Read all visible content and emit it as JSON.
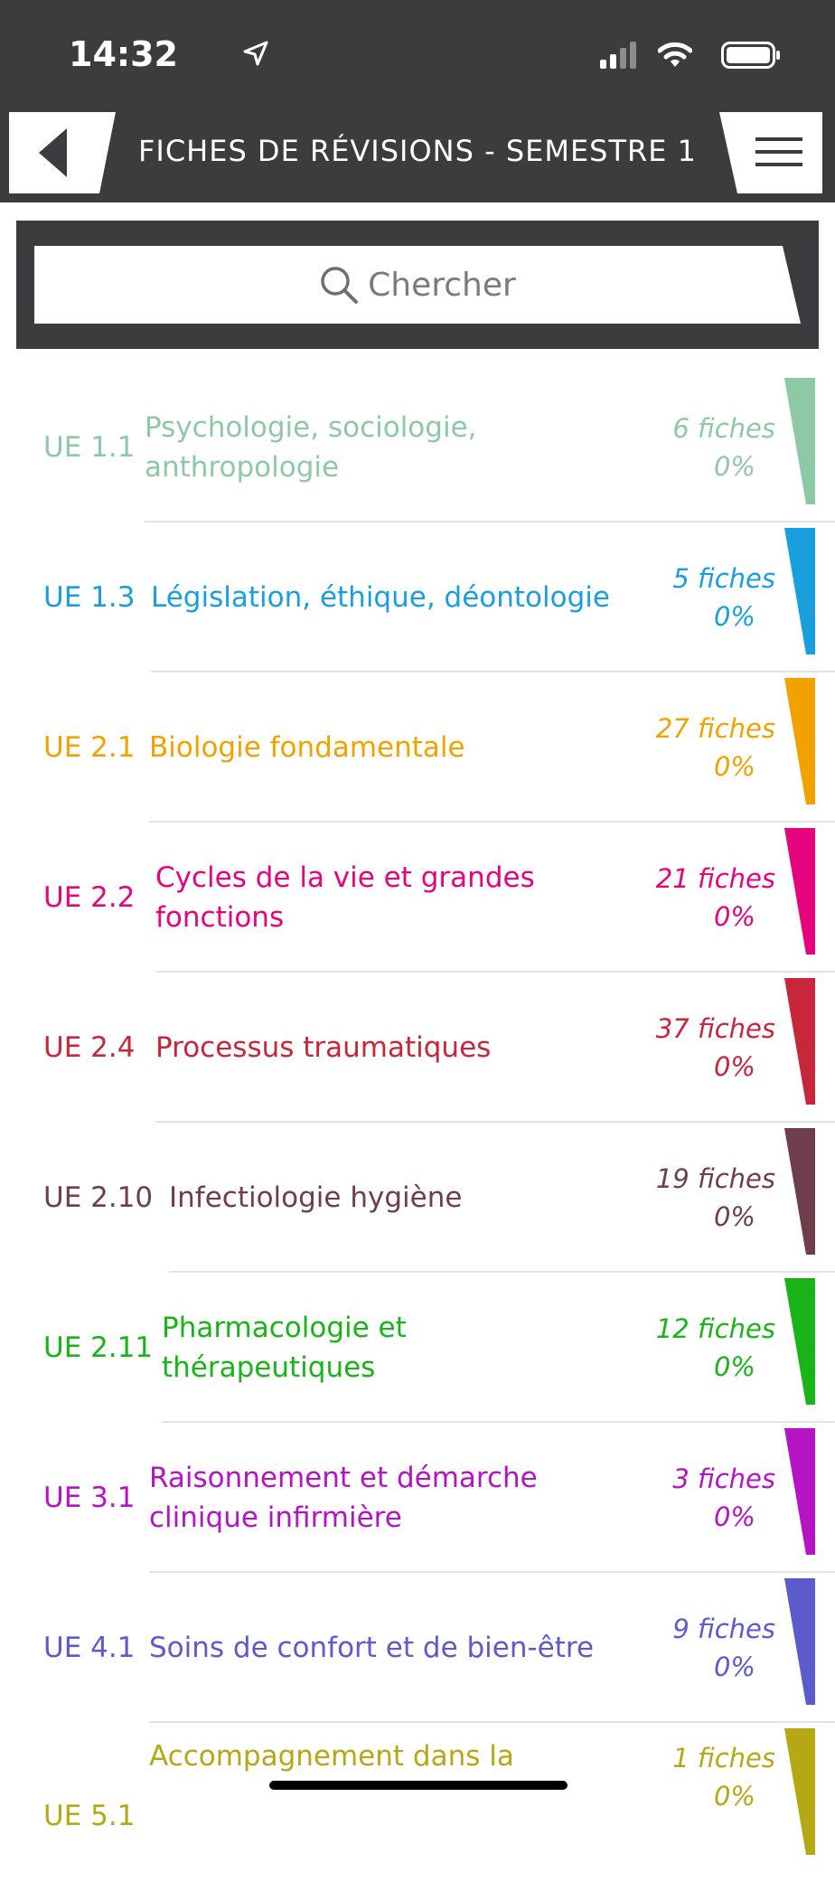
{
  "status_bar": {
    "time": "14:32"
  },
  "header": {
    "title": "FICHES DE RÉVISIONS - SEMESTRE 1"
  },
  "search": {
    "placeholder": "Chercher"
  },
  "items": [
    {
      "code": "UE 1.1",
      "name": "Psychologie, sociologie, anthropologie",
      "count": "6 fiches",
      "progress": "0%",
      "color": "#8dc9a4"
    },
    {
      "code": "UE 1.3",
      "name": "Législation, éthique, déontologie",
      "count": "5 fiches",
      "progress": "0%",
      "color": "#1a9fde"
    },
    {
      "code": "UE 2.1",
      "name": "Biologie fondamentale",
      "count": "27 fiches",
      "progress": "0%",
      "color": "#f2a200"
    },
    {
      "code": "UE 2.2",
      "name": "Cycles de la vie et grandes fonctions",
      "count": "21 fiches",
      "progress": "0%",
      "color": "#e5047e"
    },
    {
      "code": "UE 2.4",
      "name": "Processus traumatiques",
      "count": "37 fiches",
      "progress": "0%",
      "color": "#c8263a"
    },
    {
      "code": "UE 2.10",
      "name": "Infectiologie hygiène",
      "count": "19 fiches",
      "progress": "0%",
      "color": "#6f3d4b"
    },
    {
      "code": "UE 2.11",
      "name": "Pharmacologie et thérapeutiques",
      "count": "12 fiches",
      "progress": "0%",
      "color": "#1ab31a"
    },
    {
      "code": "UE 3.1",
      "name": "Raisonnement et démarche clinique infirmière",
      "count": "3 fiches",
      "progress": "0%",
      "color": "#b414c4"
    },
    {
      "code": "UE 4.1",
      "name": "Soins de confort et de bien-être",
      "count": "9 fiches",
      "progress": "0%",
      "color": "#5b5bcc"
    },
    {
      "code": "UE 5.1",
      "name": "Accompagnement dans la",
      "count": "1 fiches",
      "progress": "0%",
      "color": "#b6a815"
    }
  ]
}
